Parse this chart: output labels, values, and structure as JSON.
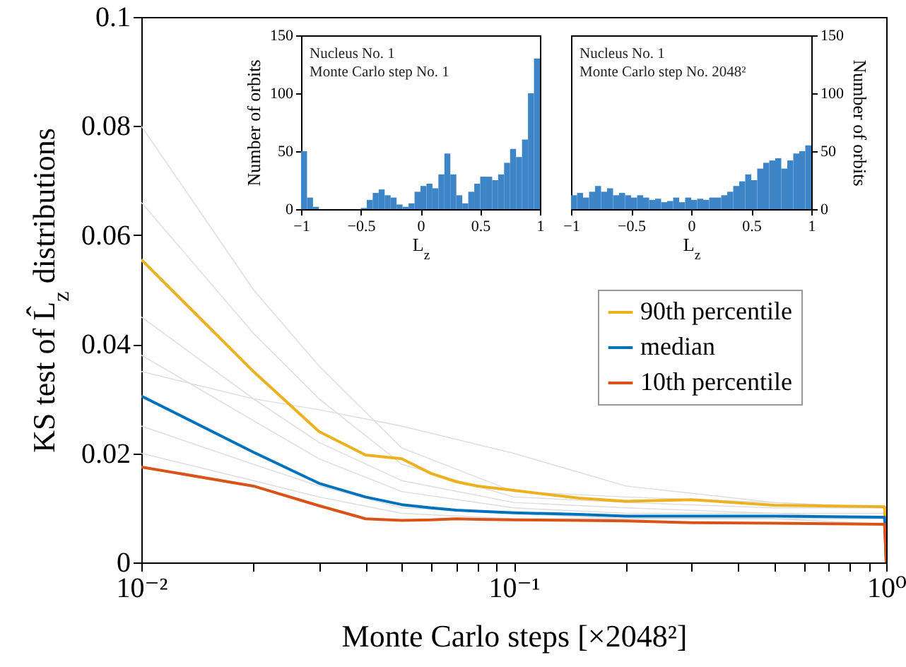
{
  "chart_data": [
    {
      "type": "line",
      "xlabel": "Monte Carlo steps [×2048²]",
      "ylabel": "KS test of L̂$_{z}$ distributions",
      "log": "x",
      "legend": "right",
      "xlim": [
        0.01,
        1
      ],
      "ylim": [
        0,
        0.1
      ],
      "xticks": [
        {
          "value": 0.01,
          "label": "10⁻²"
        },
        {
          "value": 0.02,
          "label": null
        },
        {
          "value": 0.03,
          "label": null
        },
        {
          "value": 0.04,
          "label": null
        },
        {
          "value": 0.05,
          "label": null
        },
        {
          "value": 0.06,
          "label": null
        },
        {
          "value": 0.07,
          "label": null
        },
        {
          "value": 0.08,
          "label": null
        },
        {
          "value": 0.09,
          "label": null
        },
        {
          "value": 0.1,
          "label": "10⁻¹"
        },
        {
          "value": 0.2,
          "label": null
        },
        {
          "value": 0.3,
          "label": null
        },
        {
          "value": 0.4,
          "label": null
        },
        {
          "value": 0.5,
          "label": null
        },
        {
          "value": 0.6,
          "label": null
        },
        {
          "value": 0.7,
          "label": null
        },
        {
          "value": 0.8,
          "label": null
        },
        {
          "value": 0.9,
          "label": null
        },
        {
          "value": 1,
          "label": "10⁰"
        }
      ],
      "yticks": [
        0,
        0.02,
        0.04,
        0.06,
        0.08,
        0.1
      ],
      "x": [
        0.01,
        0.02,
        0.03,
        0.04,
        0.05,
        0.06,
        0.07,
        0.08,
        0.1,
        0.15,
        0.2,
        0.3,
        0.5,
        0.99,
        1
      ],
      "series": [
        {
          "color": "#dcdcdc",
          "x": [
            0.01,
            0.02,
            0.03,
            0.05,
            0.1,
            0.2,
            0.5,
            1
          ],
          "values": [
            0.08,
            0.05,
            0.036,
            0.021,
            0.013,
            0.012,
            0.011,
            0.01
          ]
        },
        {
          "color": "#dcdcdc",
          "x": [
            0.01,
            0.02,
            0.03,
            0.05,
            0.1,
            0.2,
            0.5,
            1
          ],
          "values": [
            0.066,
            0.042,
            0.03,
            0.018,
            0.012,
            0.011,
            0.01,
            0.01
          ]
        },
        {
          "color": "#dcdcdc",
          "x": [
            0.01,
            0.02,
            0.03,
            0.05,
            0.1,
            0.2,
            0.5,
            1
          ],
          "values": [
            0.045,
            0.03,
            0.022,
            0.015,
            0.011,
            0.01,
            0.009,
            0.009
          ]
        },
        {
          "color": "#dcdcdc",
          "x": [
            0.01,
            0.02,
            0.03,
            0.05,
            0.1,
            0.2,
            0.5,
            1
          ],
          "values": [
            0.038,
            0.026,
            0.019,
            0.013,
            0.01,
            0.009,
            0.009,
            0.008
          ]
        },
        {
          "color": "#dcdcdc",
          "x": [
            0.01,
            0.02,
            0.03,
            0.05,
            0.1,
            0.2,
            0.5,
            1
          ],
          "values": [
            0.025,
            0.018,
            0.014,
            0.01,
            0.009,
            0.008,
            0.008,
            0.008
          ]
        },
        {
          "color": "#dcdcdc",
          "x": [
            0.01,
            0.02,
            0.03,
            0.05,
            0.1,
            0.2,
            0.5,
            1
          ],
          "values": [
            0.02,
            0.015,
            0.012,
            0.009,
            0.008,
            0.008,
            0.008,
            0.007
          ]
        },
        {
          "color": "#dcdcdc",
          "x": [
            0.01,
            0.02,
            0.03,
            0.05,
            0.1,
            0.2,
            0.5,
            1
          ],
          "values": [
            0.035,
            0.03,
            0.028,
            0.025,
            0.02,
            0.014,
            0.011,
            0.01
          ]
        },
        {
          "name": "90th percentile",
          "color": "#edb120",
          "values": [
            0.0555,
            0.035,
            0.024,
            0.0197,
            0.019,
            0.0163,
            0.0148,
            0.014,
            0.0132,
            0.0118,
            0.0112,
            0.0115,
            0.0105,
            0.0102,
            0
          ]
        },
        {
          "name": "median",
          "color": "#0072bd",
          "values": [
            0.0305,
            0.0202,
            0.0145,
            0.012,
            0.0106,
            0.01,
            0.0096,
            0.0094,
            0.0091,
            0.0088,
            0.0085,
            0.0085,
            0.0085,
            0.0083,
            0
          ]
        },
        {
          "name": "10th percentile",
          "color": "#d95319",
          "values": [
            0.0175,
            0.014,
            0.0104,
            0.008,
            0.0077,
            0.0078,
            0.008,
            0.0079,
            0.0078,
            0.0077,
            0.0076,
            0.0073,
            0.0072,
            0.007,
            0
          ]
        }
      ]
    },
    {
      "type": "histogram",
      "xlabel": "L$_{z}$",
      "ylabel": "Number of orbits",
      "color": "#3d85c6",
      "xlim": [
        -1,
        1
      ],
      "xticks": [
        {
          "value": -1,
          "label": "−1"
        },
        {
          "value": -0.5,
          "label": "−0.5"
        },
        0,
        0.5,
        1
      ],
      "ylim": [
        0,
        150
      ],
      "yticks": [
        0,
        50,
        100,
        150
      ],
      "annotations": [
        "Nucleus No. 1",
        "Monte Carlo step No. 1"
      ],
      "bins": [
        -1,
        -0.95,
        -0.9,
        -0.85,
        -0.8,
        -0.75,
        -0.7,
        -0.65,
        -0.6,
        -0.55,
        -0.5,
        -0.45,
        -0.4,
        -0.35,
        -0.3,
        -0.25,
        -0.2,
        -0.15,
        -0.1,
        -0.05,
        0,
        0.05,
        0.1,
        0.15,
        0.2,
        0.25,
        0.3,
        0.35,
        0.4,
        0.45,
        0.5,
        0.55,
        0.6,
        0.65,
        0.7,
        0.75,
        0.8,
        0.85,
        0.9,
        0.95,
        1
      ],
      "values": [
        50,
        10,
        2,
        0,
        0,
        0,
        0,
        0,
        0,
        0,
        1,
        8,
        14,
        17,
        12,
        10,
        4,
        2,
        5,
        15,
        20,
        22,
        18,
        30,
        48,
        30,
        12,
        5,
        15,
        22,
        28,
        28,
        25,
        30,
        40,
        52,
        45,
        60,
        100,
        130
      ]
    },
    {
      "type": "histogram",
      "xlabel": "L$_{z}$",
      "y2label": "Number of orbits",
      "xlim": [
        -1,
        1
      ],
      "xticks": [
        {
          "value": -1,
          "label": "−1"
        },
        {
          "value": -0.5,
          "label": "−0.5"
        },
        0,
        0.5,
        1
      ],
      "y2lim": [
        0,
        150
      ],
      "y2ticks": [
        0,
        50,
        100,
        150
      ],
      "annotations": [
        "Nucleus No. 1",
        "Monte Carlo step No. 2048²"
      ],
      "bins": [
        -1,
        -0.95,
        -0.9,
        -0.85,
        -0.8,
        -0.75,
        -0.7,
        -0.65,
        -0.6,
        -0.55,
        -0.5,
        -0.45,
        -0.4,
        -0.35,
        -0.3,
        -0.25,
        -0.2,
        -0.15,
        -0.1,
        -0.05,
        0,
        0.05,
        0.1,
        0.15,
        0.2,
        0.25,
        0.3,
        0.35,
        0.4,
        0.45,
        0.5,
        0.55,
        0.6,
        0.65,
        0.7,
        0.75,
        0.8,
        0.85,
        0.9,
        0.95,
        1
      ],
      "series": [
        {
          "axis": "y2",
          "color": "#3d85c6",
          "values": [
            12,
            14,
            10,
            15,
            20,
            15,
            18,
            12,
            14,
            12,
            10,
            12,
            10,
            8,
            9,
            6,
            7,
            10,
            6,
            10,
            8,
            9,
            8,
            10,
            10,
            12,
            15,
            20,
            24,
            30,
            25,
            35,
            40,
            42,
            44,
            35,
            42,
            48,
            50,
            55
          ]
        }
      ]
    }
  ]
}
